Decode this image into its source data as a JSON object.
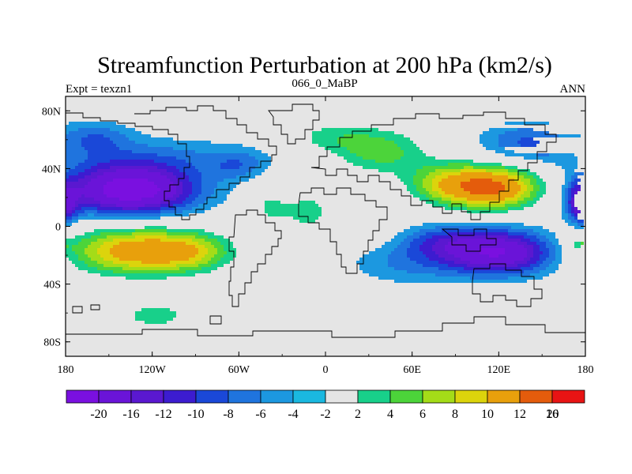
{
  "chart_data": {
    "type": "contour_map",
    "title": "Streamfunction Perturbation at 200 hPa (km2/s)",
    "left_string": "Expt = texzn1",
    "center_string": "066_0_MaBP",
    "right_string": "ANN",
    "xlim": [
      -180,
      180
    ],
    "ylim": [
      -90,
      90
    ],
    "x_ticks": [
      {
        "value": -180,
        "label": "180"
      },
      {
        "value": -120,
        "label": "120W"
      },
      {
        "value": -60,
        "label": "60W"
      },
      {
        "value": 0,
        "label": "0"
      },
      {
        "value": 60,
        "label": "60E"
      },
      {
        "value": 120,
        "label": "120E"
      },
      {
        "value": 180,
        "label": "180"
      }
    ],
    "y_ticks": [
      {
        "value": 80,
        "label": "80N"
      },
      {
        "value": 40,
        "label": "40N"
      },
      {
        "value": 0,
        "label": "0"
      },
      {
        "value": -40,
        "label": "40S"
      },
      {
        "value": -80,
        "label": "80S"
      }
    ],
    "levels": [
      -20,
      -16,
      -12,
      -10,
      -8,
      -6,
      -4,
      -2,
      2,
      4,
      6,
      8,
      10,
      12,
      16,
      20
    ],
    "level_labels": [
      "-20",
      "-16",
      "-12",
      "-10",
      "-8",
      "-6",
      "-4",
      "-2",
      "2",
      "4",
      "6",
      "8",
      "10",
      "12",
      "16",
      "20"
    ],
    "colors": [
      "#7a10e0",
      "#6a14d8",
      "#5a18d0",
      "#3c1cd0",
      "#1a48d8",
      "#1f74de",
      "#1c98e0",
      "#1ab8e0",
      "#e5e5e5",
      "#18d08a",
      "#4cd43a",
      "#a4dc18",
      "#dcd40c",
      "#e8a00c",
      "#e45c0c",
      "#e81414"
    ],
    "background_color": "#e5e5e5",
    "anomalies": [
      {
        "lon": -135,
        "lat": 25,
        "amp": -19,
        "sx": 32,
        "sy": 12
      },
      {
        "lon": -120,
        "lat": 48,
        "amp": -4,
        "sx": 55,
        "sy": 10
      },
      {
        "lon": -160,
        "lat": 62,
        "amp": -5,
        "sx": 18,
        "sy": 8
      },
      {
        "lon": -60,
        "lat": 42,
        "amp": -4,
        "sx": 14,
        "sy": 7
      },
      {
        "lon": -130,
        "lat": -17,
        "amp": 14,
        "sx": 36,
        "sy": 12
      },
      {
        "lon": -92,
        "lat": -18,
        "amp": 5,
        "sx": 20,
        "sy": 9
      },
      {
        "lon": -118,
        "lat": -62,
        "amp": 5,
        "sx": 22,
        "sy": 8
      },
      {
        "lon": -40,
        "lat": 14,
        "amp": 4,
        "sx": 10,
        "sy": 12
      },
      {
        "lon": -12,
        "lat": 10,
        "amp": 5,
        "sx": 13,
        "sy": 11
      },
      {
        "lon": 30,
        "lat": 2,
        "amp": 3,
        "sx": 12,
        "sy": 10
      },
      {
        "lon": -10,
        "lat": -32,
        "amp": 3,
        "sx": 10,
        "sy": 6
      },
      {
        "lon": 38,
        "lat": 52,
        "amp": 7,
        "sx": 24,
        "sy": 12
      },
      {
        "lon": 0,
        "lat": 62,
        "amp": 4,
        "sx": 22,
        "sy": 8
      },
      {
        "lon": 115,
        "lat": 27,
        "amp": 17,
        "sx": 25,
        "sy": 11
      },
      {
        "lon": 80,
        "lat": 30,
        "amp": 6,
        "sx": 18,
        "sy": 10
      },
      {
        "lon": 138,
        "lat": 58,
        "amp": -6,
        "sx": 22,
        "sy": 10
      },
      {
        "lon": 120,
        "lat": -18,
        "amp": -16,
        "sx": 28,
        "sy": 11
      },
      {
        "lon": 55,
        "lat": -25,
        "amp": -4,
        "sx": 28,
        "sy": 11
      },
      {
        "lon": 80,
        "lat": -10,
        "amp": -5,
        "sx": 20,
        "sy": 8
      },
      {
        "lon": 130,
        "lat": -52,
        "amp": 3,
        "sx": 15,
        "sy": 7
      },
      {
        "lon": 175,
        "lat": 15,
        "amp": -6,
        "sx": 7,
        "sy": 10
      },
      {
        "lon": -180,
        "lat": 15,
        "amp": -6,
        "sx": 7,
        "sy": 10
      },
      {
        "lon": 175,
        "lat": -12,
        "amp": 4,
        "sx": 6,
        "sy": 5
      }
    ]
  }
}
